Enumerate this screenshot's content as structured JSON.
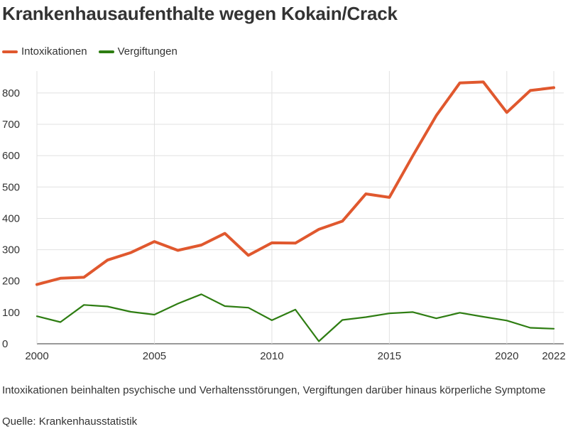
{
  "chart_data": {
    "type": "line",
    "title": "Krankenhausaufenthalte wegen Kokain/Crack",
    "xlabel": "",
    "ylabel": "",
    "x": [
      2000,
      2001,
      2002,
      2003,
      2004,
      2005,
      2006,
      2007,
      2008,
      2009,
      2010,
      2011,
      2012,
      2013,
      2014,
      2015,
      2016,
      2017,
      2018,
      2019,
      2020,
      2021,
      2022
    ],
    "series": [
      {
        "name": "Intoxikationen",
        "color": "#e0582e",
        "values": [
          189,
          209,
          212,
          267,
          291,
          326,
          298,
          315,
          352,
          282,
          322,
          321,
          365,
          391,
          478,
          467,
          600,
          728,
          832,
          835,
          738,
          808,
          817
        ]
      },
      {
        "name": "Vergiftungen",
        "color": "#2e7d12",
        "values": [
          88,
          69,
          124,
          119,
          102,
          93,
          128,
          158,
          120,
          115,
          75,
          109,
          8,
          76,
          85,
          97,
          101,
          81,
          99,
          86,
          74,
          51,
          48
        ]
      }
    ],
    "ylim": [
      0,
      870
    ],
    "xlim": [
      2000,
      2022
    ],
    "yticks": [
      "0",
      "100",
      "200",
      "300",
      "400",
      "500",
      "600",
      "700",
      "800"
    ],
    "xticks": [
      "2000",
      "2005",
      "2010",
      "2015",
      "2020",
      "2022"
    ],
    "grid": true,
    "legend_position": "top-left"
  },
  "footnote": {
    "note": "Intoxikationen beinhalten psychische und Verhaltensstörungen, Vergiftungen darüber hinaus körperliche Symptome",
    "source": "Quelle: Krankenhausstatistik"
  }
}
